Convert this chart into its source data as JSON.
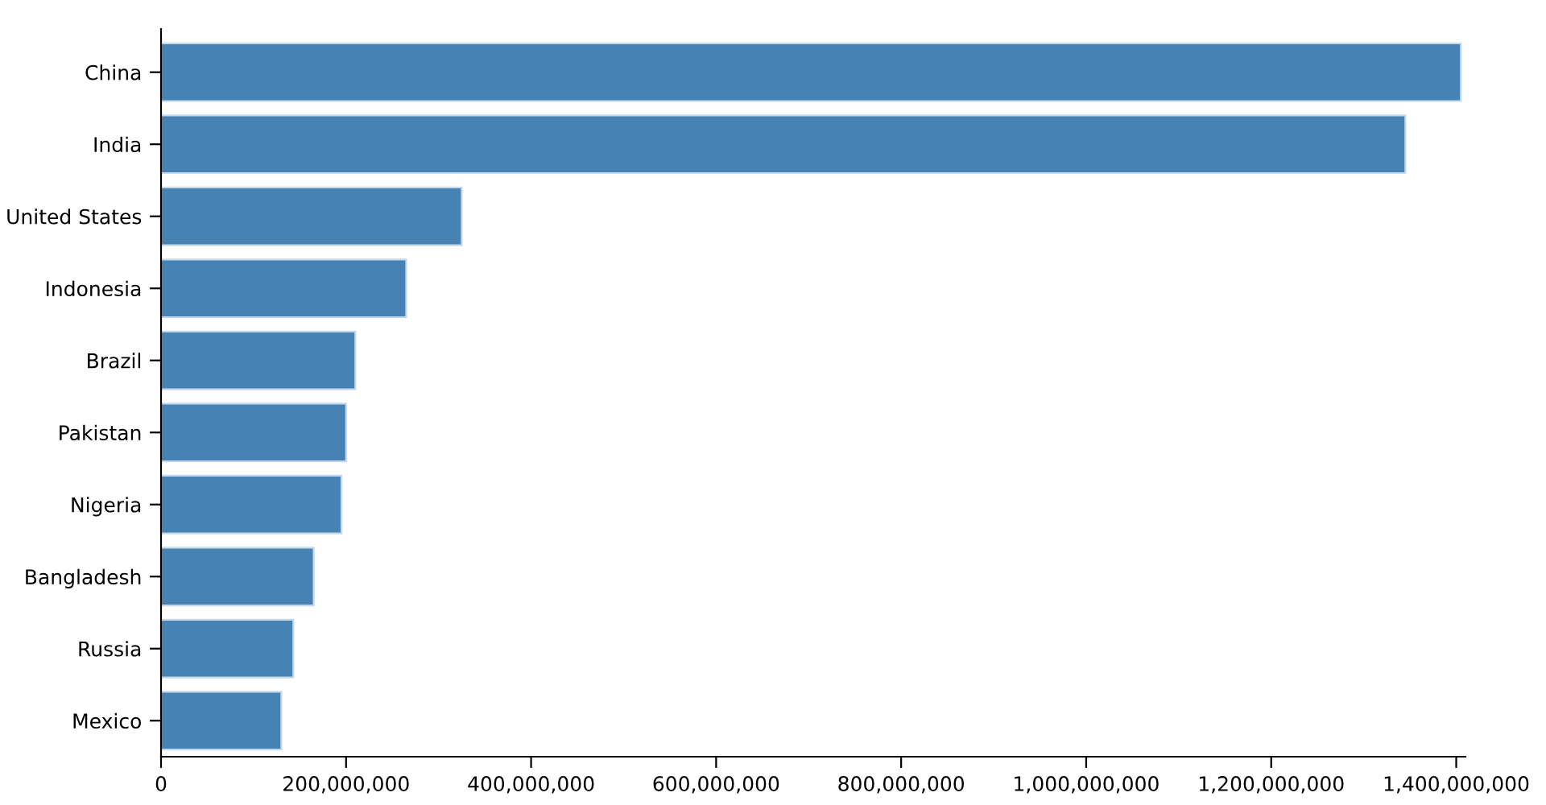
{
  "chart_data": {
    "type": "bar",
    "orientation": "horizontal",
    "categories": [
      "China",
      "India",
      "United States",
      "Indonesia",
      "Brazil",
      "Pakistan",
      "Nigeria",
      "Bangladesh",
      "Russia",
      "Mexico"
    ],
    "values": [
      1405000000,
      1345000000,
      325000000,
      265000000,
      210000000,
      200000000,
      195000000,
      165000000,
      143000000,
      130000000
    ],
    "color": "#4682b4",
    "xlim": [
      0,
      1410000000
    ],
    "xticks": [
      {
        "value": 0,
        "label": "0"
      },
      {
        "value": 200000000,
        "label": "200,000,000"
      },
      {
        "value": 400000000,
        "label": "400,000,000"
      },
      {
        "value": 600000000,
        "label": "600,000,000"
      },
      {
        "value": 800000000,
        "label": "800,000,000"
      },
      {
        "value": 1000000000,
        "label": "1,000,000,000"
      },
      {
        "value": 1200000000,
        "label": "1,200,000,000"
      },
      {
        "value": 1400000000,
        "label": "1,400,000,000"
      }
    ],
    "grid": false
  }
}
